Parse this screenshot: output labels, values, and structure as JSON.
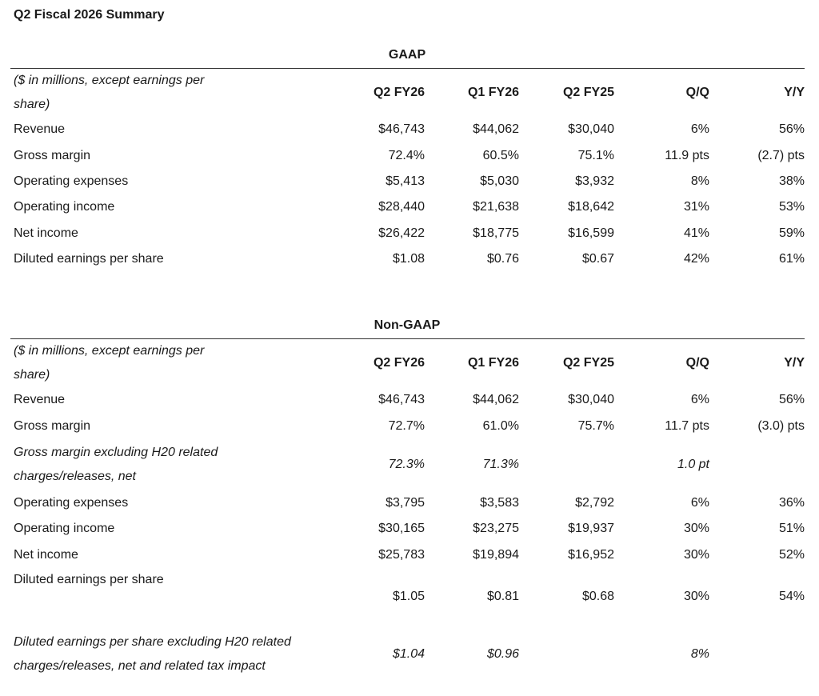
{
  "title": "Q2 Fiscal 2026 Summary",
  "columns": [
    "Q2 FY26",
    "Q1 FY26",
    "Q2 FY25",
    "Q/Q",
    "Y/Y"
  ],
  "gaap": {
    "heading": "GAAP",
    "header_label": "($ in millions, except earnings per share)",
    "rows": [
      {
        "label": "Revenue",
        "values": [
          "$46,743",
          "$44,062",
          "$30,040",
          "6%",
          "56%"
        ]
      },
      {
        "label": "Gross margin",
        "values": [
          "72.4%",
          "60.5%",
          "75.1%",
          "11.9 pts",
          "(2.7) pts"
        ]
      },
      {
        "label": "Operating expenses",
        "values": [
          "$5,413",
          "$5,030",
          "$3,932",
          "8%",
          "38%"
        ]
      },
      {
        "label": "Operating income",
        "values": [
          "$28,440",
          "$21,638",
          "$18,642",
          "31%",
          "53%"
        ]
      },
      {
        "label": "Net income",
        "values": [
          "$26,422",
          "$18,775",
          "$16,599",
          "41%",
          "59%"
        ]
      },
      {
        "label": "Diluted earnings per share",
        "values": [
          "$1.08",
          "$0.76",
          "$0.67",
          "42%",
          "61%"
        ]
      }
    ]
  },
  "non_gaap": {
    "heading": "Non-GAAP",
    "header_label": "($ in millions, except earnings per share)",
    "rows": [
      {
        "label": "Revenue",
        "values": [
          "$46,743",
          "$44,062",
          "$30,040",
          "6%",
          "56%"
        ]
      },
      {
        "label": "Gross margin",
        "values": [
          "72.7%",
          "61.0%",
          "75.7%",
          "11.7 pts",
          "(3.0) pts"
        ]
      },
      {
        "label": "Gross margin excluding H20 related charges/releases, net",
        "values": [
          "72.3%",
          "71.3%",
          "",
          "1.0 pt",
          ""
        ]
      },
      {
        "label": "Operating expenses",
        "values": [
          "$3,795",
          "$3,583",
          "$2,792",
          "6%",
          "36%"
        ]
      },
      {
        "label": "Operating income",
        "values": [
          "$30,165",
          "$23,275",
          "$19,937",
          "30%",
          "51%"
        ]
      },
      {
        "label": "Net income",
        "values": [
          "$25,783",
          "$19,894",
          "$16,952",
          "30%",
          "52%"
        ]
      },
      {
        "label": "Diluted earnings per share",
        "values": [
          "$1.05",
          "$0.81",
          "$0.68",
          "30%",
          "54%"
        ]
      },
      {
        "label": "Diluted earnings per share excluding H20 related charges/releases, net and related tax impact",
        "values": [
          "$1.04",
          "$0.96",
          "",
          "8%",
          ""
        ]
      }
    ]
  }
}
